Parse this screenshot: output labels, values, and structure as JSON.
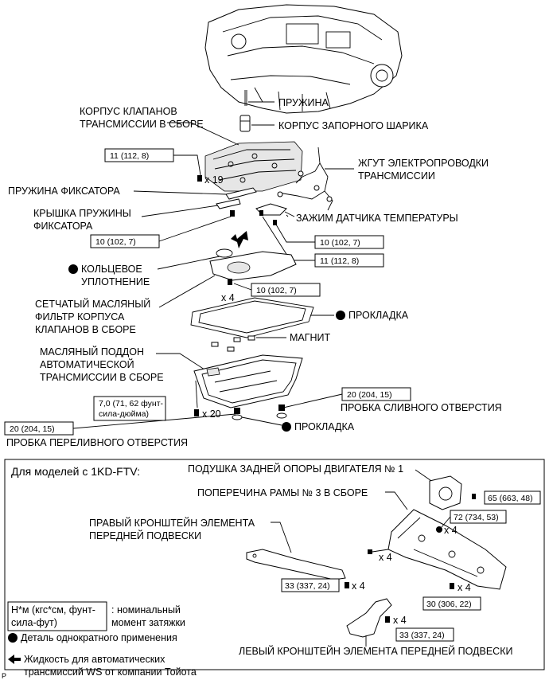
{
  "labels": {
    "spring": "ПРУЖИНА",
    "valve_body": [
      "КОРПУС КЛАПАНОВ",
      "ТРАНСМИССИИ В СБОРЕ"
    ],
    "check_ball_body": "КОРПУС ЗАПОРНОГО ШАРИКА",
    "wire_harness": [
      "ЖГУТ ЭЛЕКТРОПРОВОДКИ",
      "ТРАНСМИССИИ"
    ],
    "detent_spring": "ПРУЖИНА ФИКСАТОРА",
    "detent_cover": [
      "КРЫШКА ПРУЖИНЫ",
      "ФИКСАТОРА"
    ],
    "temp_clamp": "ЗАЖИМ ДАТЧИКА ТЕМПЕРАТУРЫ",
    "o_ring": [
      "КОЛЬЦЕВОЕ",
      "УПЛОТНЕНИЕ"
    ],
    "strainer": [
      "СЕТЧАТЫЙ МАСЛЯНЫЙ",
      "ФИЛЬТР КОРПУСА",
      "КЛАПАНОВ В СБОРЕ"
    ],
    "gasket": "ПРОКЛАДКА",
    "magnet": "МАГНИТ",
    "oil_pan": [
      "МАСЛЯНЫЙ ПОДДОН",
      "АВТОМАТИЧЕСКОЙ",
      "ТРАНСМИССИИ В СБОРЕ"
    ],
    "drain_plug": "ПРОБКА СЛИВНОГО ОТВЕРСТИЯ",
    "gasket2": "ПРОКЛАДКА",
    "overflow_plug": "ПРОБКА ПЕРЕЛИВНОГО ОТВЕРСТИЯ"
  },
  "torques": {
    "t_valve": "11 (112, 8)",
    "t_cover": "10 (102, 7)",
    "t_clamp1": "10 (102, 7)",
    "t_clamp2": "11 (112, 8)",
    "t_strainer": "10 (102, 7)",
    "t_pan": [
      "7,0 (71, 62 фунт-",
      "сила-дюйма)"
    ],
    "t_drain": "20 (204, 15)",
    "t_overflow": "20 (204, 15)"
  },
  "counts": {
    "x19": "x 19",
    "x4a": "x 4",
    "x20": "x 20"
  },
  "panel": {
    "title": "Для моделей с 1KD-FTV:",
    "rear_mount": "ПОДУШКА ЗАДНЕЙ ОПОРЫ ДВИГАТЕЛЯ № 1",
    "crossmember": "ПОПЕРЕЧИНА РАМЫ № 3 В СБОРЕ",
    "rh_bracket": [
      "ПРАВЫЙ КРОНШТЕЙН ЭЛЕМЕНТА",
      "ПЕРЕДНЕЙ ПОДВЕСКИ"
    ],
    "lh_bracket": "ЛЕВЫЙ КРОНШТЕЙН ЭЛЕМЕНТА ПЕРЕДНЕЙ ПОДВЕСКИ",
    "t_mount": "65 (663, 48)",
    "t_cross1": "72 (734, 53)",
    "t_rh": "33 (337, 24)",
    "t_cross2": "30 (306, 22)",
    "t_lh": "33 (337, 24)",
    "x4_1": "x 4",
    "x4_2": "x 4",
    "x4_3": "x 4",
    "x4_4": "x 4",
    "x4_5": "x 4"
  },
  "legend": {
    "torque_unit": [
      "Н*м (кгс*см, фунт-",
      "сила-фут)"
    ],
    "torque_desc": [
      ": номинальный",
      "момент затяжки"
    ],
    "non_reusable": "Деталь однократного применения",
    "fluid": [
      "Жидкость для автоматических",
      "трансмиссий WS от компании Тойота"
    ]
  },
  "footer_mark": "P"
}
